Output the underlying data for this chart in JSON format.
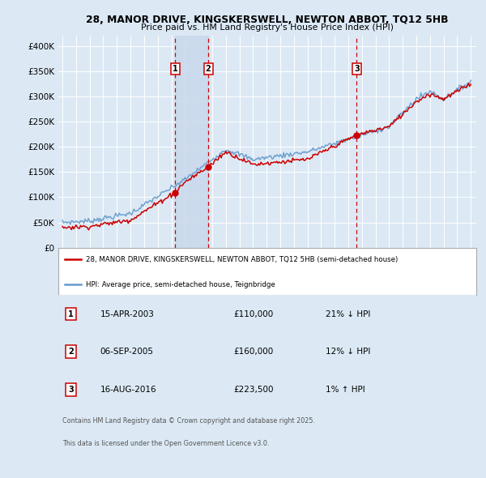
{
  "title_line1": "28, MANOR DRIVE, KINGSKERSWELL, NEWTON ABBOT, TQ12 5HB",
  "title_line2": "Price paid vs. HM Land Registry's House Price Index (HPI)",
  "background_color": "#dce9f5",
  "plot_bg_color": "#dce9f5",
  "ylim": [
    0,
    420000
  ],
  "yticks": [
    0,
    50000,
    100000,
    150000,
    200000,
    250000,
    300000,
    350000,
    400000
  ],
  "ytick_labels": [
    "£0",
    "£50K",
    "£100K",
    "£150K",
    "£200K",
    "£250K",
    "£300K",
    "£350K",
    "£400K"
  ],
  "xmin": 1994.7,
  "xmax": 2025.4,
  "transactions": [
    {
      "label": "1",
      "date": "15-APR-2003",
      "year": 2003.29,
      "price": 110000,
      "hpi_diff": "21% ↓ HPI"
    },
    {
      "label": "2",
      "date": "06-SEP-2005",
      "year": 2005.71,
      "price": 160000,
      "hpi_diff": "12% ↓ HPI"
    },
    {
      "label": "3",
      "date": "16-AUG-2016",
      "year": 2016.62,
      "price": 223500,
      "hpi_diff": "1% ↑ HPI"
    }
  ],
  "legend_sold_label": "28, MANOR DRIVE, KINGSKERSWELL, NEWTON ABBOT, TQ12 5HB (semi-detached house)",
  "legend_hpi_label": "HPI: Average price, semi-detached house, Teignbridge",
  "footer_line1": "Contains HM Land Registry data © Crown copyright and database right 2025.",
  "footer_line2": "This data is licensed under the Open Government Licence v3.0.",
  "sold_color": "#cc0000",
  "hpi_color": "#6699cc",
  "vline_color": "#cc0000",
  "highlight_color": "#c8d8eb",
  "marker_color": "#cc0000",
  "grid_color": "#ffffff",
  "label_box_edge": "#cc0000"
}
